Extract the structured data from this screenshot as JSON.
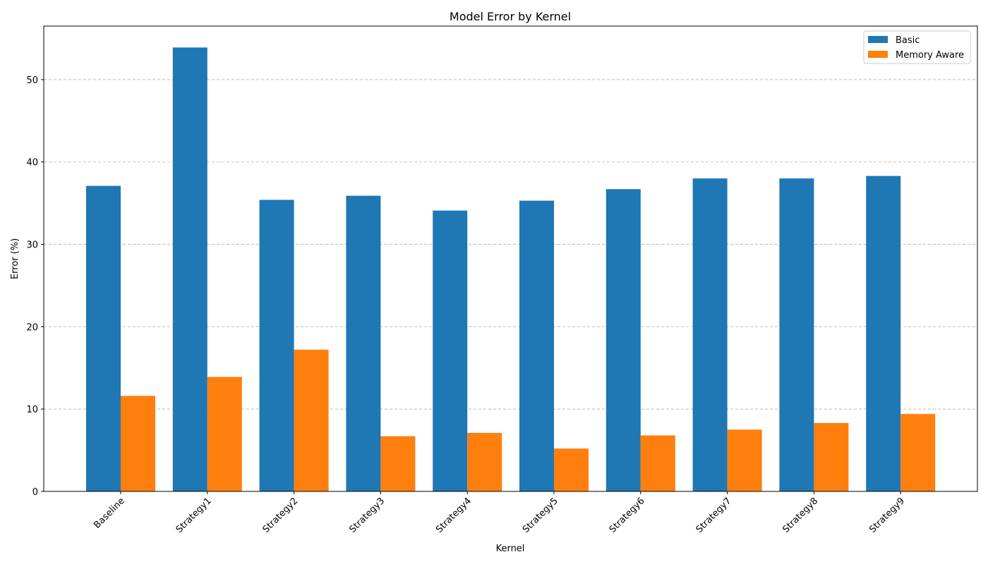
{
  "chart_data": {
    "type": "bar",
    "title": "Model Error by Kernel",
    "xlabel": "Kernel",
    "ylabel": "Error (%)",
    "categories": [
      "Baseline",
      "Strategy1",
      "Strategy2",
      "Strategy3",
      "Strategy4",
      "Strategy5",
      "Strategy6",
      "Strategy7",
      "Strategy8",
      "Strategy9"
    ],
    "series": [
      {
        "name": "Basic",
        "color": "#1f77b4",
        "values": [
          37.1,
          53.9,
          35.4,
          35.9,
          34.1,
          35.3,
          36.7,
          38.0,
          38.0,
          38.3
        ]
      },
      {
        "name": "Memory Aware",
        "color": "#ff7f0e",
        "values": [
          11.6,
          13.9,
          17.2,
          6.7,
          7.1,
          5.2,
          6.8,
          7.5,
          8.3,
          9.4
        ]
      }
    ],
    "ylim": [
      0,
      56.5
    ],
    "yticks": [
      0,
      10,
      20,
      30,
      40,
      50
    ],
    "grid": "horizontal dashed",
    "legend_position": "top-right"
  }
}
